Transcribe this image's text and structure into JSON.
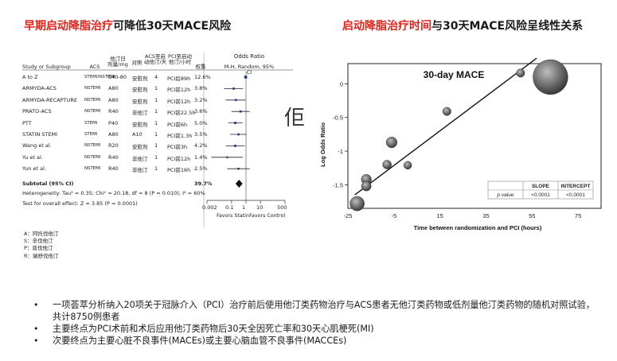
{
  "left_heading": {
    "red": "早期启动降脂治疗",
    "black": "可降低30天MACE风险"
  },
  "right_heading": {
    "red": "启动降脂治疗时间",
    "black": "与30天MACE风险呈线性关系"
  },
  "forest": {
    "headers": {
      "study": "Study or Subgroup",
      "acs": "ACS",
      "statin_dose": "他汀日\n剂量/mg",
      "control": "对照",
      "acs_to_statin": "ACS至启\n动他汀/天",
      "pci_to_statin": "PCI至启动\n他汀/小时",
      "weight": "权重",
      "or_title": "Odds Ratio",
      "or_method": "M-H, Random, 95% CI"
    },
    "rows": [
      {
        "study": "A to Z",
        "acs": "STEMI/NSTEMI",
        "dose": "S40-80",
        "control": "安慰剂",
        "acs_days": "4",
        "pci_hours": "PCI后89h",
        "weight": "12.6%"
      },
      {
        "study": "ARMYDA-ACS",
        "acs": "NSTEMI",
        "dose": "A80",
        "control": "安慰剂",
        "acs_days": "1",
        "pci_hours": "PCI前12h",
        "weight": "3.8%"
      },
      {
        "study": "ARMYDA-RECAPTURE",
        "acs": "NSTEMI",
        "dose": "A80",
        "control": "安慰剂",
        "acs_days": "1",
        "pci_hours": "PCI前12h",
        "weight": "3.2%"
      },
      {
        "study": "PRATO-ACS",
        "acs": "NSTEMI",
        "dose": "R40",
        "control": "非他汀",
        "acs_days": "1",
        "pci_hours": "PCI前22.5h",
        "weight": "3.6%"
      },
      {
        "study": "PTT",
        "acs": "STEMI",
        "dose": "P40",
        "control": "安慰剂",
        "acs_days": "1",
        "pci_hours": "PCI前6h",
        "weight": "5.0%"
      },
      {
        "study": "STATIN STEMI",
        "acs": "STEMI",
        "dose": "A80",
        "control": "A10",
        "acs_days": "1",
        "pci_hours": "PCI前1.3h",
        "weight": "3.5%"
      },
      {
        "study": "Wang et al.",
        "acs": "NSTEMI",
        "dose": "R20",
        "control": "安慰剂",
        "acs_days": "1",
        "pci_hours": "PCI前3h",
        "weight": "4.2%"
      },
      {
        "study": "Yu et al.",
        "acs": "NSTEMI",
        "dose": "R40",
        "control": "非他汀",
        "acs_days": "1",
        "pci_hours": "PCI前12h",
        "weight": "1.4%"
      },
      {
        "study": "Yun et al.",
        "acs": "NSTEMI",
        "dose": "R40",
        "control": "非他汀",
        "acs_days": "1",
        "pci_hours": "PCI前16h",
        "weight": "2.5%"
      }
    ],
    "subtotal_label": "Subtotal (95% CI)",
    "subtotal_weight": "39.7%",
    "heterogeneity": "Heterogeneity: Tau² = 0.35; Chi² = 20.18, df = 8 (P = 0.010); I² = 60%",
    "overall": "Test for overall effect: Z = 3.85 (P = 0.0001)",
    "ticks": [
      "0.002",
      "0.1",
      "1",
      "10",
      "500"
    ],
    "favors_left": "Favors Statin",
    "favors_right": "Favors Control"
  },
  "abbreviations": [
    "A：阿托伐他汀",
    "S：辛伐他汀",
    "P：普伐他汀",
    "R：瑞舒伐他汀"
  ],
  "cursor_glyph": "佢",
  "chart_data": [
    {
      "type": "forest",
      "x_scale": "log",
      "xlim": [
        0.002,
        500
      ],
      "null_value": 1,
      "x_ticks": [
        0.002,
        0.1,
        1,
        10,
        500
      ],
      "studies": [
        "A to Z",
        "ARMYDA-ACS",
        "ARMYDA-RECAPTURE",
        "PRATO-ACS",
        "PTT",
        "STATIN STEMI",
        "Wang et al.",
        "Yu et al.",
        "Yun et al."
      ],
      "odds_ratio": [
        0.95,
        0.14,
        0.2,
        0.42,
        0.18,
        0.3,
        0.18,
        0.05,
        0.3
      ],
      "ci_low": [
        0.78,
        0.03,
        0.04,
        0.1,
        0.06,
        0.08,
        0.04,
        0.004,
        0.05
      ],
      "ci_high": [
        1.15,
        0.62,
        0.9,
        1.8,
        0.58,
        1.1,
        0.8,
        0.6,
        1.8
      ],
      "weights": [
        12.6,
        3.8,
        3.2,
        3.6,
        5.0,
        3.5,
        4.2,
        1.4,
        2.5
      ],
      "pooled": {
        "or": 0.33,
        "low": 0.19,
        "high": 0.58
      }
    },
    {
      "type": "scatter",
      "title": "30-day MACE",
      "xlabel": "Time between randomization and PCI (hours)",
      "ylabel": "Log Odds Ratio",
      "xlim": [
        -25,
        85
      ],
      "ylim": [
        -1.85,
        0.3
      ],
      "x_ticks": [
        -25,
        -5,
        15,
        35,
        55,
        75
      ],
      "y_ticks": [
        -1.5,
        -1,
        -0.5,
        0
      ],
      "points": [
        {
          "x": -21,
          "y": -1.78,
          "size": 3.2
        },
        {
          "x": -17,
          "y": -1.42,
          "size": 2.0
        },
        {
          "x": -17,
          "y": -1.52,
          "size": 1.9
        },
        {
          "x": -6,
          "y": -0.87,
          "size": 2.2
        },
        {
          "x": -8,
          "y": -1.2,
          "size": 1.7
        },
        {
          "x": 1,
          "y": -1.21,
          "size": 1.5
        },
        {
          "x": 18,
          "y": -0.41,
          "size": 1.6
        },
        {
          "x": 50,
          "y": 0.16,
          "size": 1.6
        },
        {
          "x": 63,
          "y": 0.1,
          "size": 12.6
        }
      ],
      "regression": {
        "x0": -22,
        "y0": -1.65,
        "x1": 57,
        "y1": 0.38
      },
      "stats_table": {
        "headers": [
          "",
          "SLOPE",
          "INTERCEPT"
        ],
        "row_label": "p value",
        "values": [
          "<0.0001",
          "<0.0001"
        ]
      }
    }
  ],
  "bullets": [
    "一项荟萃分析纳入20项关于冠脉介入（PCI）治疗前后使用他汀类药物治疗与ACS患者无他汀类药物或低剂量他汀类药物的随机对照试验，共计8750例患者",
    "主要终点为PCI术前和术后应用他汀类药物后30天全因死亡率和30天心肌梗死(MI)",
    "次要终点为主要心脏不良事件(MACEs)或主要心脑血管不良事件(MACCEs)"
  ]
}
